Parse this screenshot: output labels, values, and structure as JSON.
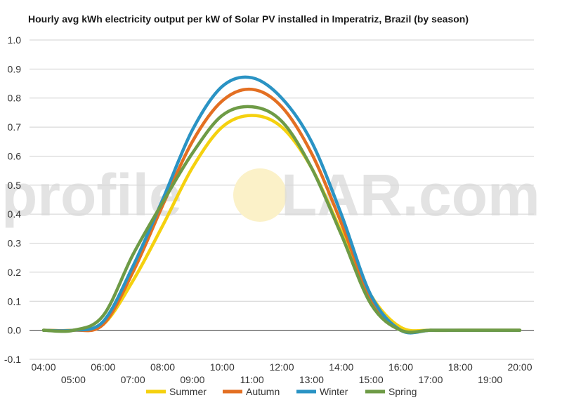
{
  "chart_data": {
    "type": "line",
    "title": "Hourly avg kWh electricity output per kW of Solar PV installed in Imperatriz, Brazil (by season)",
    "xlabel": "",
    "ylabel": "",
    "x": [
      "04:00",
      "05:00",
      "06:00",
      "07:00",
      "08:00",
      "09:00",
      "10:00",
      "11:00",
      "12:00",
      "13:00",
      "14:00",
      "15:00",
      "16:00",
      "17:00",
      "18:00",
      "19:00",
      "20:00"
    ],
    "x_tick_labels_upper": [
      "04:00",
      "06:00",
      "08:00",
      "10:00",
      "12:00",
      "14:00",
      "16:00",
      "18:00",
      "20:00"
    ],
    "x_tick_labels_lower": [
      "05:00",
      "07:00",
      "09:00",
      "11:00",
      "13:00",
      "15:00",
      "17:00",
      "19:00"
    ],
    "y_ticks": [
      "1.0",
      "0.9",
      "0.8",
      "0.7",
      "0.6",
      "0.5",
      "0.4",
      "0.3",
      "0.2",
      "0.1",
      "0.0",
      "-0.1"
    ],
    "ylim": [
      -0.1,
      1.0
    ],
    "grid": true,
    "legend_position": "bottom",
    "series": [
      {
        "name": "Summer",
        "color": "#f5d10f",
        "values": [
          0.0,
          0.0,
          0.02,
          0.17,
          0.36,
          0.56,
          0.7,
          0.74,
          0.7,
          0.56,
          0.34,
          0.12,
          0.01,
          0.0,
          0.0,
          0.0,
          0.0
        ]
      },
      {
        "name": "Autumn",
        "color": "#e36f22",
        "values": [
          0.0,
          0.0,
          0.02,
          0.2,
          0.43,
          0.65,
          0.79,
          0.83,
          0.77,
          0.61,
          0.37,
          0.11,
          0.0,
          0.0,
          0.0,
          0.0,
          0.0
        ]
      },
      {
        "name": "Winter",
        "color": "#2a93c4",
        "values": [
          0.0,
          0.0,
          0.03,
          0.22,
          0.45,
          0.69,
          0.84,
          0.87,
          0.8,
          0.65,
          0.4,
          0.12,
          0.0,
          0.0,
          0.0,
          0.0,
          0.0
        ]
      },
      {
        "name": "Spring",
        "color": "#6e9b46",
        "values": [
          0.0,
          0.0,
          0.05,
          0.26,
          0.44,
          0.61,
          0.74,
          0.77,
          0.72,
          0.56,
          0.33,
          0.09,
          0.0,
          0.0,
          0.0,
          0.0,
          0.0
        ]
      }
    ]
  },
  "watermark": {
    "left": "profile",
    "right": "LAR.com"
  },
  "colors": {
    "grid": "#d0d0d0",
    "zero_line": "#333333",
    "watermark_sun": "#fbf1c8"
  }
}
